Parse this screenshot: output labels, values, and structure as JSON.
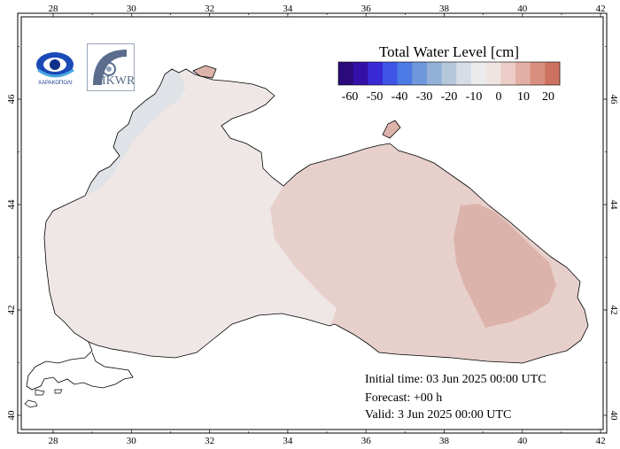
{
  "colorbar": {
    "title": "Total Water Level [cm]",
    "ticks": [
      "-60",
      "-50",
      "-40",
      "-30",
      "-20",
      "-10",
      "0",
      "10",
      "20"
    ],
    "colors": [
      "#2b0a7a",
      "#3510a8",
      "#3a2ad6",
      "#3f55e6",
      "#4d7be6",
      "#6f98dc",
      "#93b0d8",
      "#b6c8dc",
      "#d6dde6",
      "#ebebeb",
      "#f0e4e2",
      "#ebccc6",
      "#e2afa5",
      "#d98f80",
      "#cd7260"
    ]
  },
  "axes": {
    "top_labels": [
      "28",
      "30",
      "32",
      "34",
      "36",
      "38",
      "40",
      "42"
    ],
    "bottom_labels": [
      "28",
      "30",
      "32",
      "34",
      "36",
      "38",
      "40",
      "42"
    ],
    "left_labels": [
      "46",
      "44",
      "42",
      "40"
    ],
    "right_labels": [
      "46",
      "44",
      "42",
      "40"
    ]
  },
  "info": {
    "initial_time": "Initial time: 03 Jun 2025 00:00 UTC",
    "forecast": "Forecast: +00 h",
    "valid": "Valid:  3 Jun 2025 00:00 UTC"
  },
  "logos": {
    "left_text": "ΧΑΡΑΚΟΠΟΛΙ",
    "right_text": "IKWR"
  },
  "colors": {
    "water_west": "#efe6e6",
    "water_east": "#e7d0cc",
    "water_hotspot": "#dcb3aa",
    "water_coastal": "#dfe2e6",
    "land": "#ffffff",
    "coast": "#000000"
  }
}
